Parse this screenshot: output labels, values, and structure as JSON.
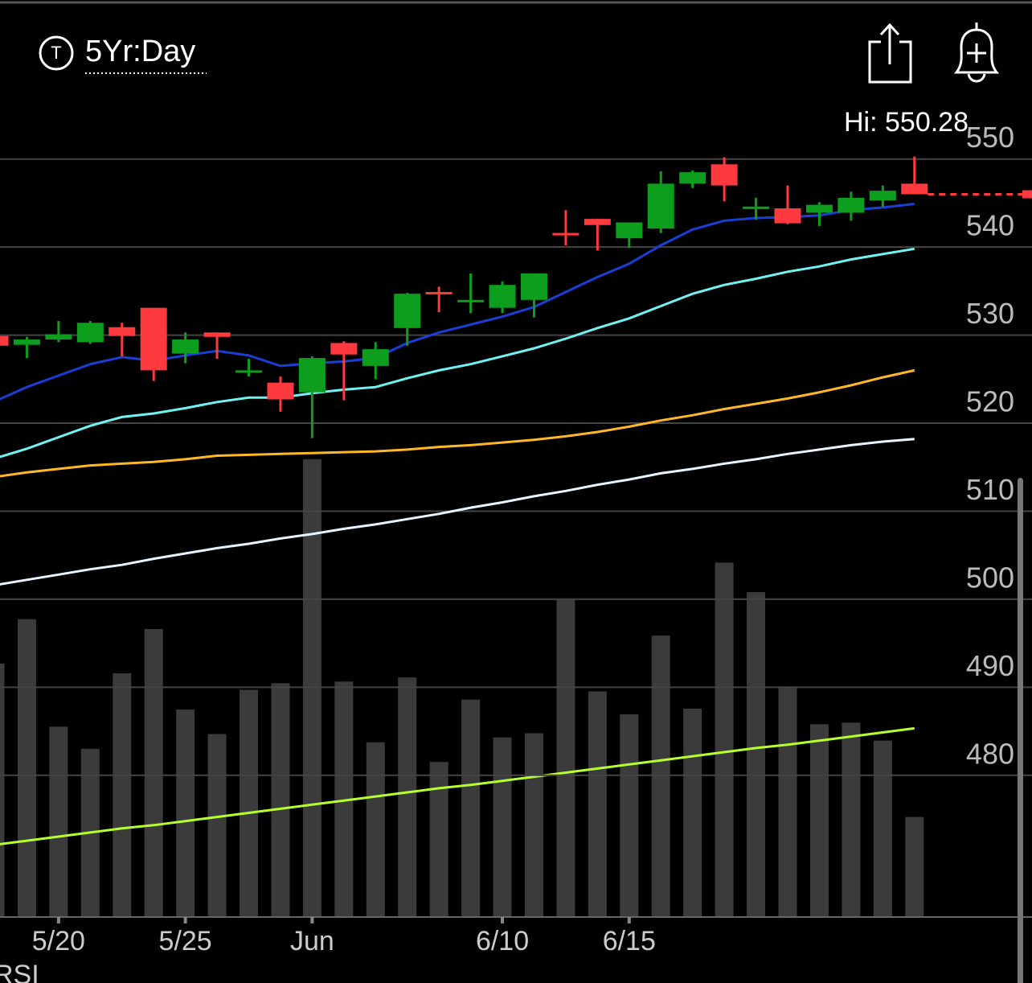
{
  "header": {
    "icon_letter": "T",
    "timeframe": "5Yr:Day"
  },
  "chart_data": {
    "type": "candlestick",
    "categories": [
      null,
      null,
      "5/20",
      null,
      null,
      null,
      "5/25",
      null,
      null,
      null,
      "Jun",
      null,
      null,
      null,
      null,
      null,
      "6/10",
      null,
      null,
      null,
      "6/15",
      null,
      null,
      null,
      null,
      null,
      null,
      null,
      null,
      null
    ],
    "open": [
      529.9,
      528.9,
      529.5,
      529.2,
      530.9,
      533.1,
      527.9,
      530.3,
      525.8,
      524.6,
      523.5,
      529.1,
      526.5,
      530.8,
      534.9,
      533.8,
      533.1,
      534.0,
      541.6,
      543.2,
      541.0,
      542.1,
      547.2,
      549.4,
      544.4,
      544.4,
      543.9,
      543.9,
      545.3,
      547.2
    ],
    "high": [
      530.0,
      529.8,
      531.6,
      531.6,
      531.4,
      533.1,
      530.3,
      530.3,
      527.3,
      525.3,
      527.6,
      529.3,
      529.2,
      534.8,
      535.5,
      537.0,
      536.1,
      537.0,
      544.2,
      543.2,
      542.8,
      548.6,
      548.7,
      550.2,
      545.6,
      547.0,
      545.1,
      546.3,
      547.0,
      550.28
    ],
    "low": [
      528.7,
      527.4,
      529.2,
      529.0,
      527.6,
      524.8,
      526.8,
      527.3,
      525.3,
      521.3,
      518.3,
      522.6,
      525.0,
      528.8,
      532.6,
      532.5,
      532.5,
      532.0,
      540.2,
      539.6,
      539.9,
      541.6,
      546.7,
      545.2,
      543.1,
      542.6,
      542.4,
      543.0,
      544.6,
      546.0
    ],
    "close": [
      528.8,
      529.5,
      530.1,
      531.4,
      529.9,
      526.0,
      529.5,
      529.8,
      526.0,
      522.7,
      527.4,
      527.8,
      528.4,
      534.7,
      534.7,
      534.0,
      535.7,
      537.0,
      541.4,
      542.5,
      542.8,
      547.2,
      548.5,
      547.0,
      544.6,
      542.7,
      544.8,
      545.6,
      546.4,
      546.0
    ],
    "up_color": "#0c9e1c",
    "down_color": "#ff3a3f",
    "ylim": [
      463.9,
      557.1
    ],
    "yticks": [
      480,
      490,
      500,
      510,
      520,
      530,
      540,
      550
    ],
    "grid": true,
    "hi_label": "Hi: 550.28",
    "overlays": [
      {
        "color": "#1b3fd4",
        "values": [
          522.5,
          524.1,
          525.4,
          526.7,
          527.5,
          527.1,
          527.7,
          528.2,
          527.7,
          526.5,
          526.8,
          527.0,
          527.4,
          529.1,
          530.3,
          531.2,
          532.1,
          533.2,
          534.9,
          536.6,
          538.1,
          540.2,
          542.0,
          543.0,
          543.3,
          543.4,
          543.6,
          544.2,
          544.5,
          544.9
        ]
      },
      {
        "color": "#6ff3f3",
        "values": [
          516.0,
          517.1,
          518.4,
          519.7,
          520.7,
          521.1,
          521.7,
          522.4,
          522.9,
          522.9,
          523.4,
          523.8,
          524.1,
          525.1,
          526.0,
          526.7,
          527.6,
          528.5,
          529.6,
          530.8,
          531.9,
          533.3,
          534.7,
          535.7,
          536.4,
          537.2,
          537.8,
          538.6,
          539.2,
          539.8
        ]
      },
      {
        "color": "#ffb825",
        "values": [
          513.9,
          514.4,
          514.8,
          515.2,
          515.4,
          515.6,
          515.9,
          516.3,
          516.4,
          516.5,
          516.6,
          516.7,
          516.8,
          517.0,
          517.3,
          517.5,
          517.8,
          518.1,
          518.5,
          519.0,
          519.6,
          520.3,
          520.9,
          521.6,
          522.2,
          522.8,
          523.5,
          524.3,
          525.2,
          526.0
        ]
      },
      {
        "color": "#e6f4ff",
        "values": [
          501.6,
          502.2,
          502.8,
          503.4,
          503.9,
          504.6,
          505.2,
          505.8,
          506.3,
          506.9,
          507.4,
          508.0,
          508.5,
          509.1,
          509.7,
          510.4,
          511.0,
          511.7,
          512.3,
          513.0,
          513.6,
          514.3,
          514.8,
          515.4,
          515.9,
          516.5,
          517.0,
          517.5,
          517.9,
          518.2
        ]
      }
    ],
    "volume": {
      "color": "#3b3b3b",
      "ylim": [
        0,
        100
      ],
      "values": [
        30.9,
        36.3,
        23.2,
        20.5,
        29.7,
        35.1,
        25.3,
        22.3,
        27.7,
        28.5,
        55.8,
        28.7,
        21.3,
        29.2,
        18.9,
        26.5,
        21.9,
        22.4,
        38.8,
        27.5,
        24.7,
        34.3,
        25.4,
        43.2,
        39.6,
        28.1,
        23.5,
        23.7,
        21.5,
        12.2
      ],
      "average": {
        "color": "#b6ff2c",
        "values": [
          8.8,
          9.3,
          9.8,
          10.3,
          10.8,
          11.2,
          11.7,
          12.2,
          12.7,
          13.2,
          13.7,
          14.2,
          14.7,
          15.2,
          15.7,
          16.1,
          16.6,
          17.1,
          17.6,
          18.1,
          18.6,
          19.1,
          19.6,
          20.1,
          20.6,
          21.0,
          21.5,
          22.0,
          22.5,
          23.0
        ]
      }
    },
    "indicator_label": "RSI"
  }
}
